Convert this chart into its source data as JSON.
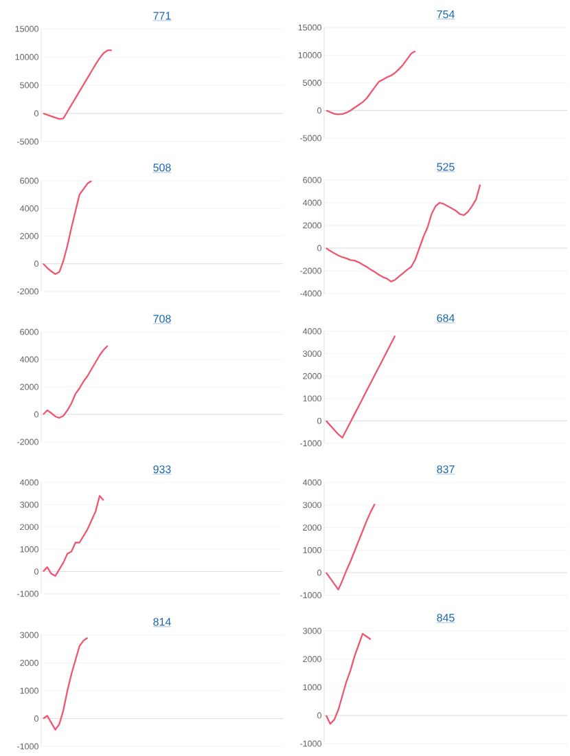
{
  "chart_data": [
    {
      "type": "line",
      "title": "771",
      "color": "#f0566f",
      "grid": "y",
      "tick_labels": "y",
      "ylim": [
        -5000,
        15000
      ],
      "yticks": [
        -5000,
        0,
        5000,
        10000,
        15000
      ],
      "categories": [
        null,
        null,
        null,
        null,
        null,
        null,
        null,
        null,
        null,
        null,
        null,
        null,
        null,
        null,
        null,
        null,
        null,
        null,
        null,
        null,
        null,
        null,
        null,
        null,
        null,
        null,
        null,
        null,
        null,
        null,
        null,
        null,
        null,
        null,
        null,
        null,
        null,
        null,
        null,
        null,
        null,
        null,
        null,
        null,
        null,
        null,
        null,
        null,
        null,
        null,
        null,
        null,
        null,
        null,
        null,
        null,
        null,
        null,
        null,
        null
      ],
      "values": [
        0,
        -250,
        -500,
        -750,
        -1000,
        -900,
        300,
        1500,
        2700,
        3900,
        5100,
        6300,
        7500,
        8700,
        9800,
        10700,
        11200,
        11200,
        null,
        null,
        null,
        null,
        null,
        null,
        null,
        null,
        null,
        null,
        null,
        null,
        null,
        null,
        null,
        null,
        null,
        null,
        null,
        null,
        null,
        null,
        null,
        null,
        null,
        null,
        null,
        null,
        null,
        null,
        null,
        null,
        null,
        null,
        null,
        null,
        null,
        null,
        null,
        null,
        null,
        null
      ]
    },
    {
      "type": "line",
      "title": "754",
      "color": "#f0566f",
      "grid": "y",
      "tick_labels": "y",
      "ylim": [
        -5000,
        15000
      ],
      "yticks": [
        -5000,
        0,
        5000,
        10000,
        15000
      ],
      "categories": [
        null,
        null,
        null,
        null,
        null,
        null,
        null,
        null,
        null,
        null,
        null,
        null,
        null,
        null,
        null,
        null,
        null,
        null,
        null,
        null,
        null,
        null,
        null,
        null,
        null,
        null,
        null,
        null,
        null,
        null,
        null,
        null,
        null,
        null,
        null,
        null,
        null,
        null,
        null,
        null,
        null,
        null,
        null,
        null,
        null,
        null,
        null,
        null,
        null,
        null,
        null,
        null,
        null,
        null,
        null,
        null,
        null,
        null,
        null,
        null
      ],
      "values": [
        0,
        -300,
        -600,
        -700,
        -650,
        -400,
        0,
        500,
        1000,
        1500,
        2200,
        3200,
        4200,
        5200,
        5600,
        6000,
        6300,
        6800,
        7500,
        8300,
        9300,
        10300,
        10700,
        null,
        null,
        null,
        null,
        null,
        null,
        null,
        null,
        null,
        null,
        null,
        null,
        null,
        null,
        null,
        null,
        null,
        null,
        null,
        null,
        null,
        null,
        null,
        null,
        null,
        null,
        null,
        null,
        null,
        null,
        null,
        null,
        null,
        null,
        null,
        null,
        null
      ]
    },
    {
      "type": "line",
      "title": "508",
      "color": "#f0566f",
      "grid": "y",
      "tick_labels": "y",
      "ylim": [
        -2000,
        6000
      ],
      "yticks": [
        -2000,
        0,
        2000,
        4000,
        6000
      ],
      "categories": [
        null,
        null,
        null,
        null,
        null,
        null,
        null,
        null,
        null,
        null,
        null,
        null,
        null,
        null,
        null,
        null,
        null,
        null,
        null,
        null,
        null,
        null,
        null,
        null,
        null,
        null,
        null,
        null,
        null,
        null,
        null,
        null,
        null,
        null,
        null,
        null,
        null,
        null,
        null,
        null,
        null,
        null,
        null,
        null,
        null,
        null,
        null,
        null,
        null,
        null,
        null,
        null,
        null,
        null,
        null,
        null,
        null,
        null,
        null,
        null
      ],
      "values": [
        0,
        -300,
        -550,
        -750,
        -600,
        200,
        1300,
        2600,
        3800,
        5000,
        5400,
        5800,
        6000,
        null,
        null,
        null,
        null,
        null,
        null,
        null,
        null,
        null,
        null,
        null,
        null,
        null,
        null,
        null,
        null,
        null,
        null,
        null,
        null,
        null,
        null,
        null,
        null,
        null,
        null,
        null,
        null,
        null,
        null,
        null,
        null,
        null,
        null,
        null,
        null,
        null,
        null,
        null,
        null,
        null,
        null,
        null,
        null,
        null,
        null,
        null
      ]
    },
    {
      "type": "line",
      "title": "525",
      "color": "#f0566f",
      "grid": "y",
      "tick_labels": "y",
      "ylim": [
        -4000,
        6000
      ],
      "yticks": [
        -4000,
        -2000,
        0,
        2000,
        4000,
        6000
      ],
      "categories": [
        null,
        null,
        null,
        null,
        null,
        null,
        null,
        null,
        null,
        null,
        null,
        null,
        null,
        null,
        null,
        null,
        null,
        null,
        null,
        null,
        null,
        null,
        null,
        null,
        null,
        null,
        null,
        null,
        null,
        null,
        null,
        null,
        null,
        null,
        null,
        null,
        null,
        null,
        null,
        null,
        null,
        null,
        null,
        null,
        null,
        null,
        null,
        null,
        null,
        null,
        null,
        null,
        null,
        null,
        null,
        null,
        null,
        null,
        null,
        null
      ],
      "values": [
        0,
        -250,
        -450,
        -650,
        -800,
        -900,
        -1050,
        -1100,
        -1250,
        -1450,
        -1650,
        -1900,
        -2100,
        -2350,
        -2550,
        -2700,
        -2950,
        -2800,
        -2500,
        -2200,
        -1900,
        -1650,
        -1000,
        0,
        1000,
        1800,
        3000,
        3700,
        4000,
        3900,
        3700,
        3500,
        3300,
        3000,
        2900,
        3200,
        3700,
        4300,
        5600,
        null,
        null,
        null,
        null,
        null,
        null,
        null,
        null,
        null,
        null,
        null,
        null,
        null,
        null,
        null,
        null,
        null,
        null,
        null,
        null,
        null
      ]
    },
    {
      "type": "line",
      "title": "708",
      "color": "#f0566f",
      "grid": "y",
      "tick_labels": "y",
      "ylim": [
        -2000,
        6000
      ],
      "yticks": [
        -2000,
        0,
        2000,
        4000,
        6000
      ],
      "categories": [
        null,
        null,
        null,
        null,
        null,
        null,
        null,
        null,
        null,
        null,
        null,
        null,
        null,
        null,
        null,
        null,
        null,
        null,
        null,
        null,
        null,
        null,
        null,
        null,
        null,
        null,
        null,
        null,
        null,
        null,
        null,
        null,
        null,
        null,
        null,
        null,
        null,
        null,
        null,
        null,
        null,
        null,
        null,
        null,
        null,
        null,
        null,
        null,
        null,
        null,
        null,
        null,
        null,
        null,
        null,
        null,
        null,
        null,
        null,
        null
      ],
      "values": [
        0,
        300,
        100,
        -150,
        -250,
        -100,
        300,
        800,
        1500,
        1900,
        2400,
        2800,
        3300,
        3800,
        4300,
        4700,
        5000,
        null,
        null,
        null,
        null,
        null,
        null,
        null,
        null,
        null,
        null,
        null,
        null,
        null,
        null,
        null,
        null,
        null,
        null,
        null,
        null,
        null,
        null,
        null,
        null,
        null,
        null,
        null,
        null,
        null,
        null,
        null,
        null,
        null,
        null,
        null,
        null,
        null,
        null,
        null,
        null,
        null,
        null,
        null
      ]
    },
    {
      "type": "line",
      "title": "684",
      "color": "#f0566f",
      "grid": "y",
      "tick_labels": "y",
      "ylim": [
        -1000,
        4000
      ],
      "yticks": [
        -1000,
        0,
        1000,
        2000,
        3000,
        4000
      ],
      "categories": [
        null,
        null,
        null,
        null,
        null,
        null,
        null,
        null,
        null,
        null,
        null,
        null,
        null,
        null,
        null,
        null,
        null,
        null,
        null,
        null,
        null,
        null,
        null,
        null,
        null,
        null,
        null,
        null,
        null,
        null,
        null,
        null,
        null,
        null,
        null,
        null,
        null,
        null,
        null,
        null,
        null,
        null,
        null,
        null,
        null,
        null,
        null,
        null,
        null,
        null,
        null,
        null,
        null,
        null,
        null,
        null,
        null,
        null,
        null,
        null
      ],
      "values": [
        0,
        -200,
        -400,
        -600,
        -750,
        -400,
        -50,
        300,
        650,
        1000,
        1350,
        1700,
        2050,
        2400,
        2750,
        3100,
        3450,
        3800,
        null,
        null,
        null,
        null,
        null,
        null,
        null,
        null,
        null,
        null,
        null,
        null,
        null,
        null,
        null,
        null,
        null,
        null,
        null,
        null,
        null,
        null,
        null,
        null,
        null,
        null,
        null,
        null,
        null,
        null,
        null,
        null,
        null,
        null,
        null,
        null,
        null,
        null,
        null,
        null,
        null,
        null
      ]
    },
    {
      "type": "line",
      "title": "933",
      "color": "#f0566f",
      "grid": "y",
      "tick_labels": "y",
      "ylim": [
        -1000,
        4000
      ],
      "yticks": [
        -1000,
        0,
        1000,
        2000,
        3000,
        4000
      ],
      "categories": [
        null,
        null,
        null,
        null,
        null,
        null,
        null,
        null,
        null,
        null,
        null,
        null,
        null,
        null,
        null,
        null,
        null,
        null,
        null,
        null,
        null,
        null,
        null,
        null,
        null,
        null,
        null,
        null,
        null,
        null,
        null,
        null,
        null,
        null,
        null,
        null,
        null,
        null,
        null,
        null,
        null,
        null,
        null,
        null,
        null,
        null,
        null,
        null,
        null,
        null,
        null,
        null,
        null,
        null,
        null,
        null,
        null,
        null,
        null,
        null
      ],
      "values": [
        0,
        200,
        -100,
        -200,
        100,
        400,
        800,
        900,
        1300,
        1300,
        1600,
        1900,
        2300,
        2700,
        3400,
        3200,
        null,
        null,
        null,
        null,
        null,
        null,
        null,
        null,
        null,
        null,
        null,
        null,
        null,
        null,
        null,
        null,
        null,
        null,
        null,
        null,
        null,
        null,
        null,
        null,
        null,
        null,
        null,
        null,
        null,
        null,
        null,
        null,
        null,
        null,
        null,
        null,
        null,
        null,
        null,
        null,
        null,
        null,
        null,
        null
      ]
    },
    {
      "type": "line",
      "title": "837",
      "color": "#f0566f",
      "grid": "y",
      "tick_labels": "y",
      "ylim": [
        -1000,
        4000
      ],
      "yticks": [
        -1000,
        0,
        1000,
        2000,
        3000,
        4000
      ],
      "categories": [
        null,
        null,
        null,
        null,
        null,
        null,
        null,
        null,
        null,
        null,
        null,
        null,
        null,
        null,
        null,
        null,
        null,
        null,
        null,
        null,
        null,
        null,
        null,
        null,
        null,
        null,
        null,
        null,
        null,
        null,
        null,
        null,
        null,
        null,
        null,
        null,
        null,
        null,
        null,
        null,
        null,
        null,
        null,
        null,
        null,
        null,
        null,
        null,
        null,
        null,
        null,
        null,
        null,
        null,
        null,
        null,
        null,
        null,
        null,
        null
      ],
      "values": [
        0,
        -250,
        -500,
        -750,
        -350,
        100,
        500,
        950,
        1400,
        1850,
        2300,
        2700,
        3050,
        null,
        null,
        null,
        null,
        null,
        null,
        null,
        null,
        null,
        null,
        null,
        null,
        null,
        null,
        null,
        null,
        null,
        null,
        null,
        null,
        null,
        null,
        null,
        null,
        null,
        null,
        null,
        null,
        null,
        null,
        null,
        null,
        null,
        null,
        null,
        null,
        null,
        null,
        null,
        null,
        null,
        null,
        null,
        null,
        null,
        null,
        null
      ]
    },
    {
      "type": "line",
      "title": "814",
      "color": "#f0566f",
      "grid": "y",
      "tick_labels": "y",
      "ylim": [
        -1000,
        3000
      ],
      "yticks": [
        -1000,
        0,
        1000,
        2000,
        3000
      ],
      "categories": [
        null,
        null,
        null,
        null,
        null,
        null,
        null,
        null,
        null,
        null,
        null,
        null,
        null,
        null,
        null,
        null,
        null,
        null,
        null,
        null,
        null,
        null,
        null,
        null,
        null,
        null,
        null,
        null,
        null,
        null,
        null,
        null,
        null,
        null,
        null,
        null,
        null,
        null,
        null,
        null,
        null,
        null,
        null,
        null,
        null,
        null,
        null,
        null,
        null,
        null,
        null,
        null,
        null,
        null,
        null,
        null,
        null,
        null,
        null,
        null
      ],
      "values": [
        0,
        100,
        -150,
        -400,
        -200,
        300,
        1000,
        1600,
        2100,
        2600,
        2800,
        2900,
        null,
        null,
        null,
        null,
        null,
        null,
        null,
        null,
        null,
        null,
        null,
        null,
        null,
        null,
        null,
        null,
        null,
        null,
        null,
        null,
        null,
        null,
        null,
        null,
        null,
        null,
        null,
        null,
        null,
        null,
        null,
        null,
        null,
        null,
        null,
        null,
        null,
        null,
        null,
        null,
        null,
        null,
        null,
        null,
        null,
        null,
        null,
        null
      ]
    },
    {
      "type": "line",
      "title": "845",
      "color": "#f0566f",
      "grid": "y",
      "tick_labels": "y",
      "ylim": [
        -1000,
        3000
      ],
      "yticks": [
        -1000,
        0,
        1000,
        2000,
        3000
      ],
      "categories": [
        null,
        null,
        null,
        null,
        null,
        null,
        null,
        null,
        null,
        null,
        null,
        null,
        null,
        null,
        null,
        null,
        null,
        null,
        null,
        null,
        null,
        null,
        null,
        null,
        null,
        null,
        null,
        null,
        null,
        null,
        null,
        null,
        null,
        null,
        null,
        null,
        null,
        null,
        null,
        null,
        null,
        null,
        null,
        null,
        null,
        null,
        null,
        null,
        null,
        null,
        null,
        null,
        null,
        null,
        null,
        null,
        null,
        null,
        null,
        null
      ],
      "values": [
        0,
        -300,
        -150,
        200,
        700,
        1200,
        1600,
        2100,
        2500,
        2900,
        2800,
        2700,
        null,
        null,
        null,
        null,
        null,
        null,
        null,
        null,
        null,
        null,
        null,
        null,
        null,
        null,
        null,
        null,
        null,
        null,
        null,
        null,
        null,
        null,
        null,
        null,
        null,
        null,
        null,
        null,
        null,
        null,
        null,
        null,
        null,
        null,
        null,
        null,
        null,
        null,
        null,
        null,
        null,
        null,
        null,
        null,
        null,
        null,
        null,
        null
      ]
    }
  ]
}
